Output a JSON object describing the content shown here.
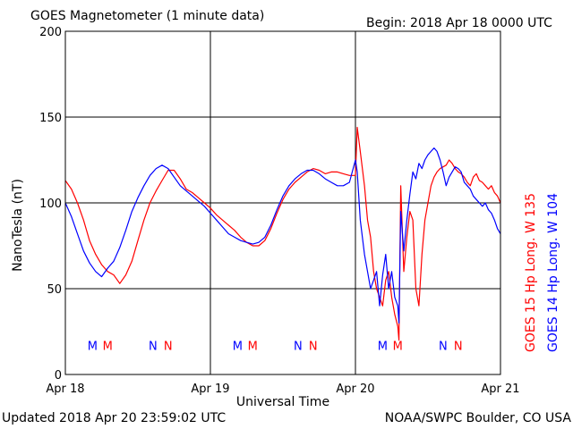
{
  "header": {
    "title": "GOES Magnetometer (1 minute data)",
    "begin": "Begin:  2018 Apr 18 0000 UTC"
  },
  "footer": {
    "updated": "Updated 2018 Apr 20 23:59:02 UTC",
    "credit": "NOAA/SWPC Boulder, CO USA"
  },
  "colors": {
    "goes15": "#ff0000",
    "goes14": "#0000ff",
    "grid": "#000000"
  },
  "chart_data": {
    "type": "line",
    "ylabel": "NanoTesla (nT)",
    "xlabel": "Universal Time",
    "ylim": [
      0,
      200
    ],
    "xlim": [
      0,
      72
    ],
    "yticks": [
      0,
      50,
      100,
      150,
      200
    ],
    "xticks": [
      {
        "x": 0,
        "label": "Apr 18"
      },
      {
        "x": 24,
        "label": "Apr 19"
      },
      {
        "x": 48,
        "label": "Apr 20"
      },
      {
        "x": 72,
        "label": "Apr 21"
      }
    ],
    "grid": true,
    "legend_position": "right-vertical",
    "series": [
      {
        "name": "GOES 15 Hp  Long. W 135",
        "color": "#ff0000",
        "x": [
          0,
          1,
          2,
          3,
          4,
          5,
          6,
          7,
          8,
          9,
          10,
          11,
          12,
          13,
          14,
          15,
          16,
          17,
          18,
          19,
          20,
          21,
          22,
          23,
          24,
          25,
          26,
          27,
          28,
          29,
          30,
          31,
          32,
          33,
          34,
          35,
          36,
          37,
          38,
          39,
          40,
          41,
          42,
          43,
          44,
          45,
          46,
          47,
          48,
          48.3,
          48.8,
          49.5,
          50,
          50.5,
          51,
          51.5,
          52,
          52.5,
          53,
          53.5,
          54,
          54.5,
          55,
          55.2,
          55.5,
          56,
          56.5,
          57,
          57.5,
          58,
          58.5,
          59,
          59.5,
          60,
          60.5,
          61,
          61.5,
          62,
          62.5,
          63,
          63.5,
          64,
          64.5,
          65,
          65.5,
          66,
          66.5,
          67,
          67.5,
          68,
          68.5,
          69,
          69.5,
          70,
          70.5,
          71,
          71.5,
          72
        ],
        "values": [
          113,
          108,
          100,
          90,
          78,
          70,
          64,
          60,
          58,
          53,
          58,
          66,
          78,
          90,
          100,
          107,
          113,
          119,
          119,
          114,
          108,
          106,
          103,
          100,
          97,
          93,
          90,
          87,
          84,
          80,
          77,
          75,
          75,
          78,
          85,
          94,
          102,
          108,
          112,
          115,
          118,
          120,
          119,
          117,
          118,
          118,
          117,
          116,
          116,
          144,
          130,
          110,
          90,
          80,
          60,
          50,
          45,
          40,
          55,
          60,
          45,
          35,
          28,
          20,
          110,
          60,
          80,
          95,
          90,
          50,
          40,
          70,
          90,
          100,
          110,
          115,
          118,
          120,
          121,
          122,
          125,
          123,
          120,
          118,
          117,
          115,
          112,
          110,
          115,
          117,
          113,
          112,
          110,
          108,
          110,
          106,
          104,
          100
        ]
      },
      {
        "name": "GOES 14 Hp  Long. W 104",
        "color": "#0000ff",
        "x": [
          0,
          1,
          2,
          3,
          4,
          5,
          6,
          7,
          8,
          9,
          10,
          11,
          12,
          13,
          14,
          15,
          16,
          17,
          18,
          19,
          20,
          21,
          22,
          23,
          24,
          25,
          26,
          27,
          28,
          29,
          30,
          31,
          32,
          33,
          34,
          35,
          36,
          37,
          38,
          39,
          40,
          41,
          42,
          43,
          44,
          45,
          46,
          47,
          48,
          48.3,
          48.8,
          49.5,
          50,
          50.5,
          51,
          51.5,
          52,
          52.5,
          53,
          53.5,
          54,
          54.5,
          55,
          55.2,
          55.5,
          56,
          56.5,
          57,
          57.5,
          58,
          58.5,
          59,
          59.5,
          60,
          60.5,
          61,
          61.5,
          62,
          62.5,
          63,
          63.5,
          64,
          64.5,
          65,
          65.5,
          66,
          66.5,
          67,
          67.5,
          68,
          68.5,
          69,
          69.5,
          70,
          70.5,
          71,
          71.5,
          72
        ],
        "values": [
          100,
          92,
          82,
          72,
          65,
          60,
          57,
          62,
          66,
          74,
          84,
          95,
          103,
          110,
          116,
          120,
          122,
          120,
          115,
          110,
          107,
          104,
          101,
          98,
          94,
          90,
          86,
          82,
          80,
          78,
          77,
          76,
          77,
          80,
          87,
          96,
          104,
          110,
          114,
          117,
          119,
          119,
          117,
          114,
          112,
          110,
          110,
          112,
          125,
          118,
          90,
          70,
          60,
          50,
          55,
          60,
          40,
          58,
          70,
          50,
          60,
          45,
          40,
          30,
          95,
          72,
          90,
          105,
          118,
          114,
          123,
          120,
          125,
          128,
          130,
          132,
          130,
          125,
          118,
          110,
          115,
          118,
          121,
          120,
          118,
          112,
          110,
          108,
          104,
          102,
          100,
          98,
          100,
          96,
          94,
          90,
          85,
          82
        ]
      }
    ],
    "markers": [
      {
        "x": 4.5,
        "label": "M",
        "color": "#0000ff"
      },
      {
        "x": 7,
        "label": "M",
        "color": "#ff0000"
      },
      {
        "x": 14.5,
        "label": "N",
        "color": "#0000ff"
      },
      {
        "x": 17,
        "label": "N",
        "color": "#ff0000"
      },
      {
        "x": 28.5,
        "label": "M",
        "color": "#0000ff"
      },
      {
        "x": 31,
        "label": "M",
        "color": "#ff0000"
      },
      {
        "x": 38.5,
        "label": "N",
        "color": "#0000ff"
      },
      {
        "x": 41,
        "label": "N",
        "color": "#ff0000"
      },
      {
        "x": 52.5,
        "label": "M",
        "color": "#0000ff"
      },
      {
        "x": 55,
        "label": "M",
        "color": "#ff0000"
      },
      {
        "x": 62.5,
        "label": "N",
        "color": "#0000ff"
      },
      {
        "x": 65,
        "label": "N",
        "color": "#ff0000"
      }
    ],
    "marker_y": 17
  }
}
